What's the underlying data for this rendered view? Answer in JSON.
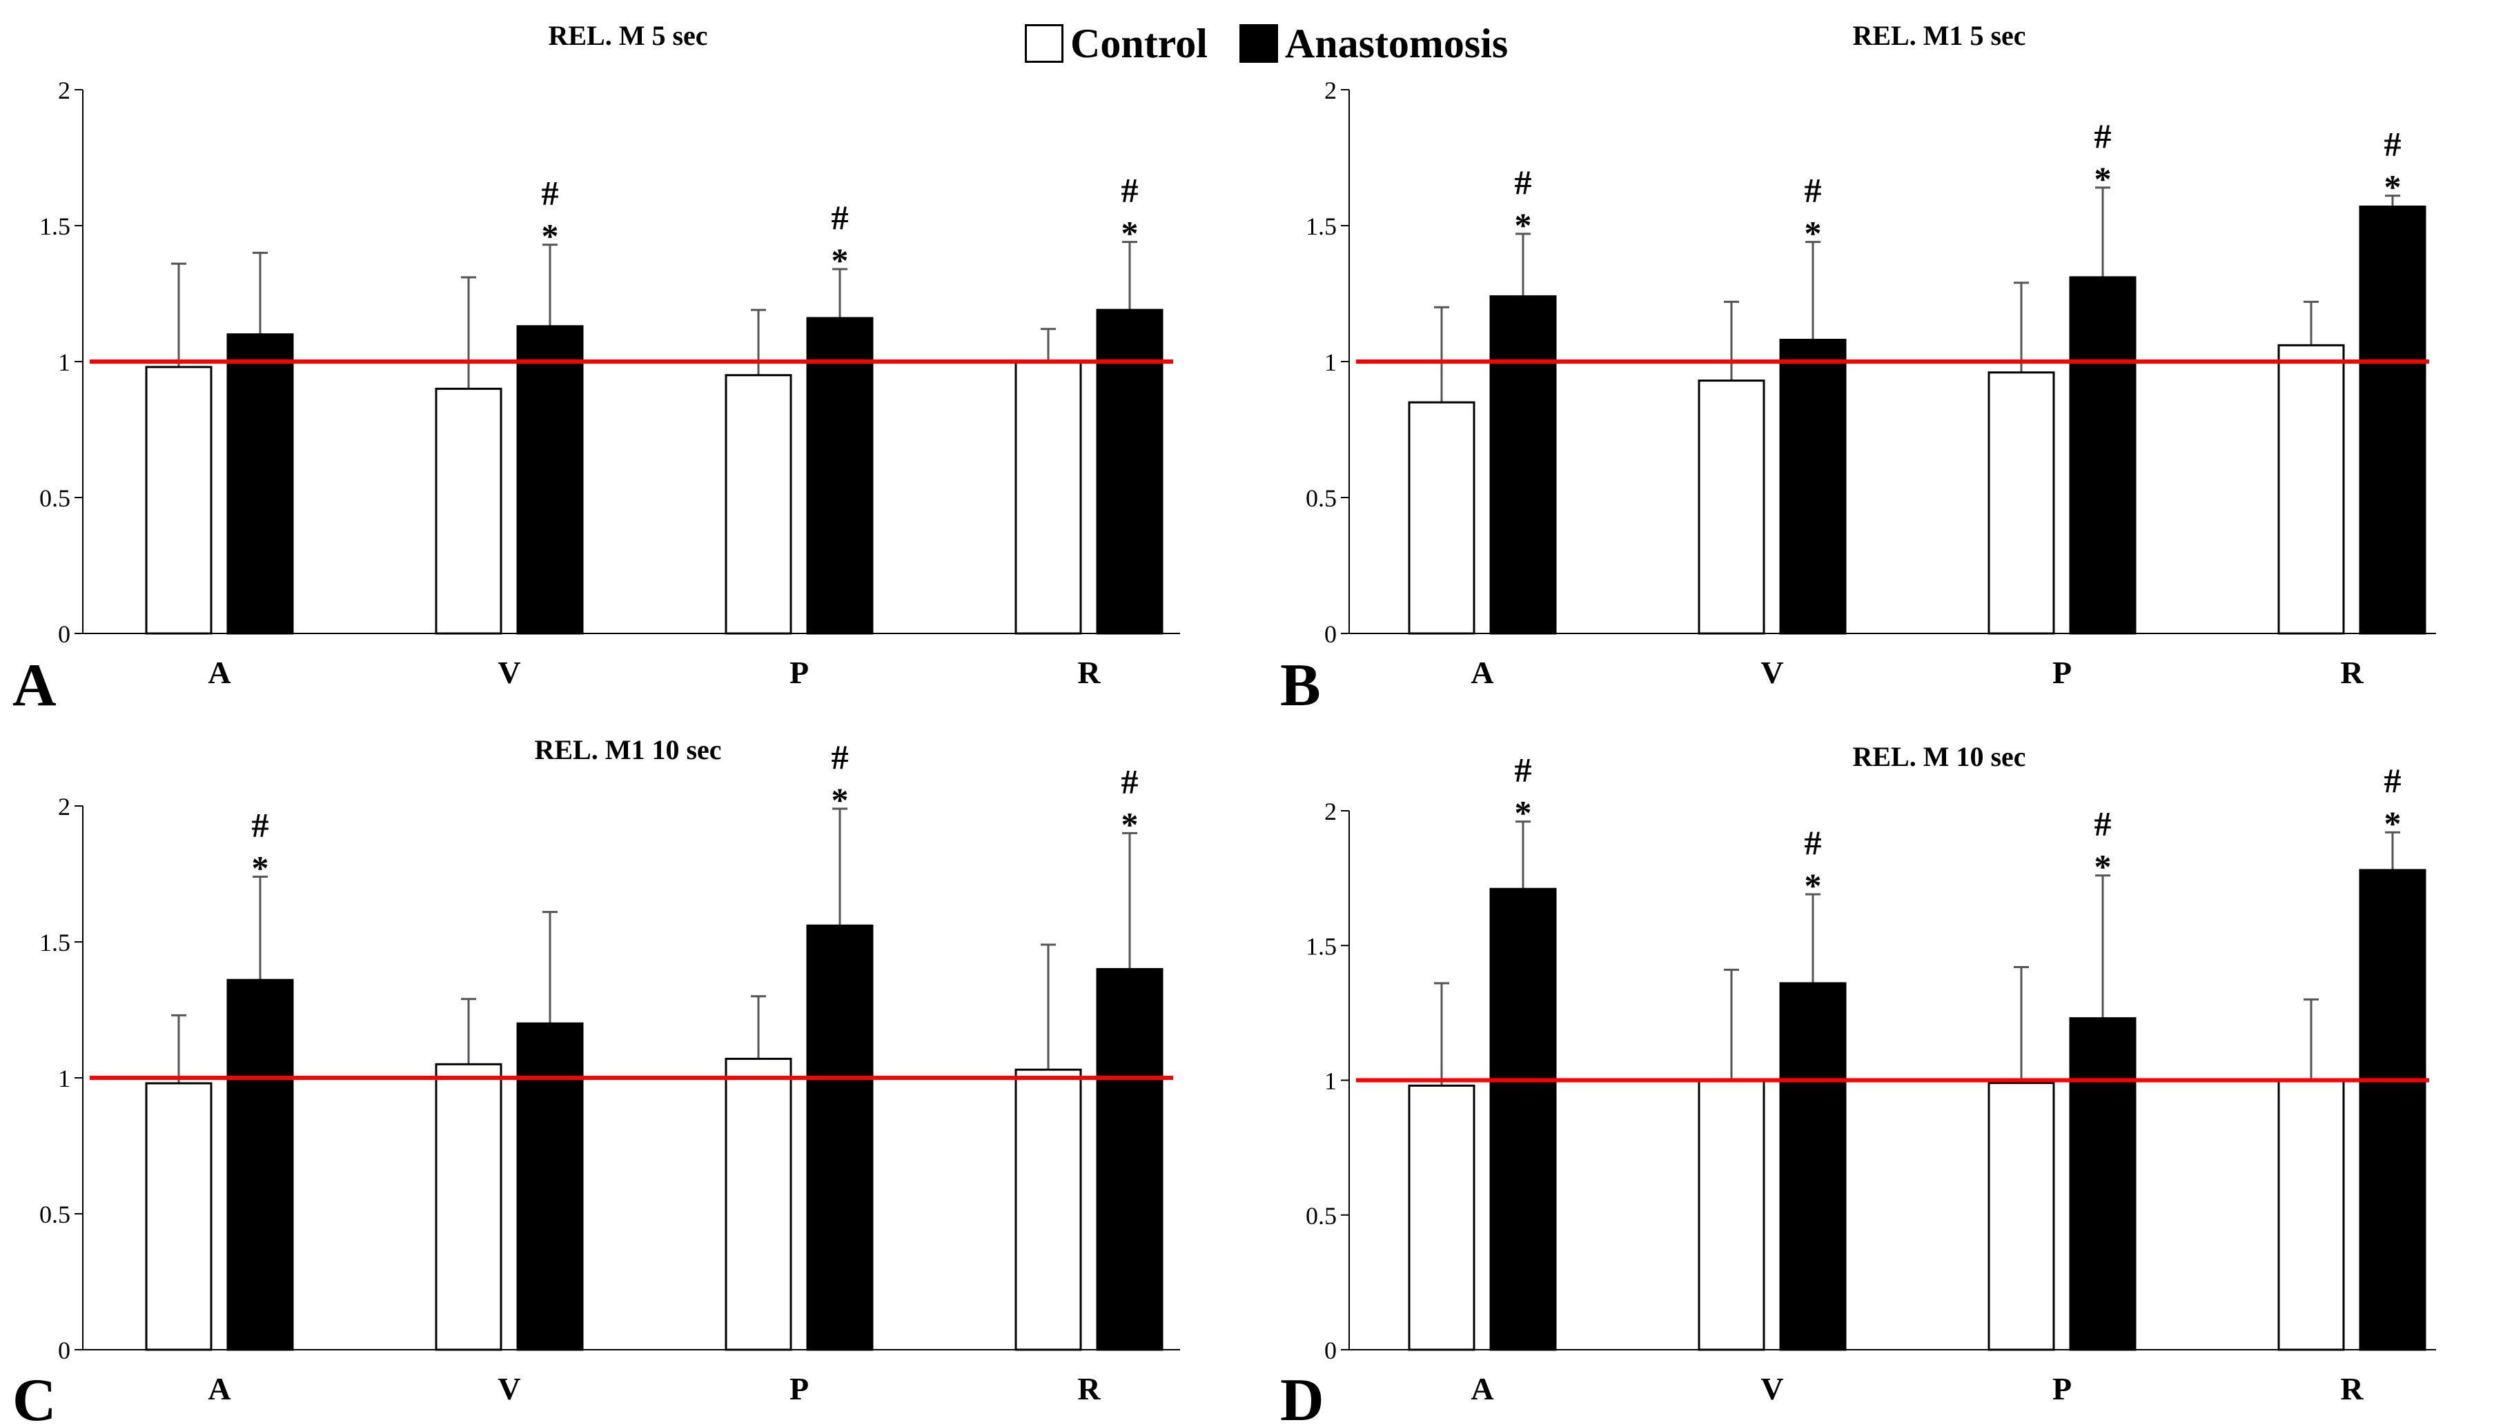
{
  "legend": {
    "control": "Control",
    "anastomosis": "Anastomosis"
  },
  "colors": {
    "control": "#ffffff",
    "anastomosis": "#000000",
    "reference_line": "#ff0000",
    "error_bar": "#555555"
  },
  "chart_data": [
    {
      "panel": "A",
      "type": "bar",
      "title": "REL. M 5 sec",
      "categories": [
        "A",
        "V",
        "P",
        "R"
      ],
      "ylim": [
        0,
        2
      ],
      "yticks": [
        "0",
        "0.5",
        "1",
        "1.5",
        "2"
      ],
      "reference_line": 1,
      "series": [
        {
          "name": "Control",
          "values": [
            0.98,
            0.9,
            0.95,
            1.0
          ],
          "error": [
            0.38,
            0.41,
            0.24,
            0.12
          ]
        },
        {
          "name": "Anastomosis",
          "values": [
            1.1,
            1.13,
            1.16,
            1.19
          ],
          "error": [
            0.3,
            0.3,
            0.18,
            0.25
          ]
        }
      ],
      "annotations": [
        {
          "category": "V",
          "series": "Anastomosis",
          "marks": [
            "#",
            "*"
          ]
        },
        {
          "category": "P",
          "series": "Anastomosis",
          "marks": [
            "#",
            "*"
          ]
        },
        {
          "category": "R",
          "series": "Anastomosis",
          "marks": [
            "#",
            "*"
          ]
        }
      ]
    },
    {
      "panel": "B",
      "type": "bar",
      "title": "REL. M1 5 sec",
      "categories": [
        "A",
        "V",
        "P",
        "R"
      ],
      "ylim": [
        0,
        2
      ],
      "yticks": [
        "0",
        "0.5",
        "1",
        "1.5",
        "2"
      ],
      "reference_line": 1,
      "series": [
        {
          "name": "Control",
          "values": [
            0.85,
            0.93,
            0.96,
            1.06
          ],
          "error": [
            0.35,
            0.29,
            0.33,
            0.16
          ]
        },
        {
          "name": "Anastomosis",
          "values": [
            1.24,
            1.08,
            1.31,
            1.57
          ],
          "error": [
            0.23,
            0.36,
            0.33,
            0.04
          ]
        }
      ],
      "annotations": [
        {
          "category": "A",
          "series": "Anastomosis",
          "marks": [
            "#",
            "*"
          ]
        },
        {
          "category": "V",
          "series": "Anastomosis",
          "marks": [
            "#",
            "*"
          ]
        },
        {
          "category": "P",
          "series": "Anastomosis",
          "marks": [
            "#",
            "*"
          ]
        },
        {
          "category": "R",
          "series": "Anastomosis",
          "marks": [
            "#",
            "*"
          ]
        }
      ]
    },
    {
      "panel": "C",
      "type": "bar",
      "title": "REL. M1 10 sec",
      "categories": [
        "A",
        "V",
        "P",
        "R"
      ],
      "ylim": [
        0,
        2
      ],
      "yticks": [
        "0",
        "0.5",
        "1",
        "1.5",
        "2"
      ],
      "reference_line": 1,
      "series": [
        {
          "name": "Control",
          "values": [
            0.98,
            1.05,
            1.07,
            1.03
          ],
          "error": [
            0.25,
            0.24,
            0.23,
            0.46
          ]
        },
        {
          "name": "Anastomosis",
          "values": [
            1.36,
            1.2,
            1.56,
            1.4
          ],
          "error": [
            0.38,
            0.41,
            0.43,
            0.5
          ]
        }
      ],
      "annotations": [
        {
          "category": "A",
          "series": "Anastomosis",
          "marks": [
            "#",
            "*"
          ]
        },
        {
          "category": "P",
          "series": "Anastomosis",
          "marks": [
            "#",
            "*"
          ]
        },
        {
          "category": "R",
          "series": "Anastomosis",
          "marks": [
            "#",
            "*"
          ]
        }
      ]
    },
    {
      "panel": "D",
      "type": "bar",
      "title": "REL. M 10 sec",
      "categories": [
        "A",
        "V",
        "P",
        "R"
      ],
      "ylim": [
        0,
        2
      ],
      "yticks": [
        "0",
        "0.5",
        "1",
        "1.5",
        "2"
      ],
      "reference_line": 1,
      "series": [
        {
          "name": "Control",
          "values": [
            0.98,
            1.0,
            0.99,
            1.0
          ],
          "error": [
            0.38,
            0.41,
            0.43,
            0.3
          ]
        },
        {
          "name": "Anastomosis",
          "values": [
            1.71,
            1.36,
            1.23,
            1.78
          ],
          "error": [
            0.25,
            0.33,
            0.53,
            0.14
          ]
        }
      ],
      "annotations": [
        {
          "category": "A",
          "series": "Anastomosis",
          "marks": [
            "#",
            "*"
          ]
        },
        {
          "category": "V",
          "series": "Anastomosis",
          "marks": [
            "#",
            "*"
          ]
        },
        {
          "category": "P",
          "series": "Anastomosis",
          "marks": [
            "#",
            "*"
          ]
        },
        {
          "category": "R",
          "series": "Anastomosis",
          "marks": [
            "#",
            "*"
          ]
        }
      ]
    }
  ]
}
